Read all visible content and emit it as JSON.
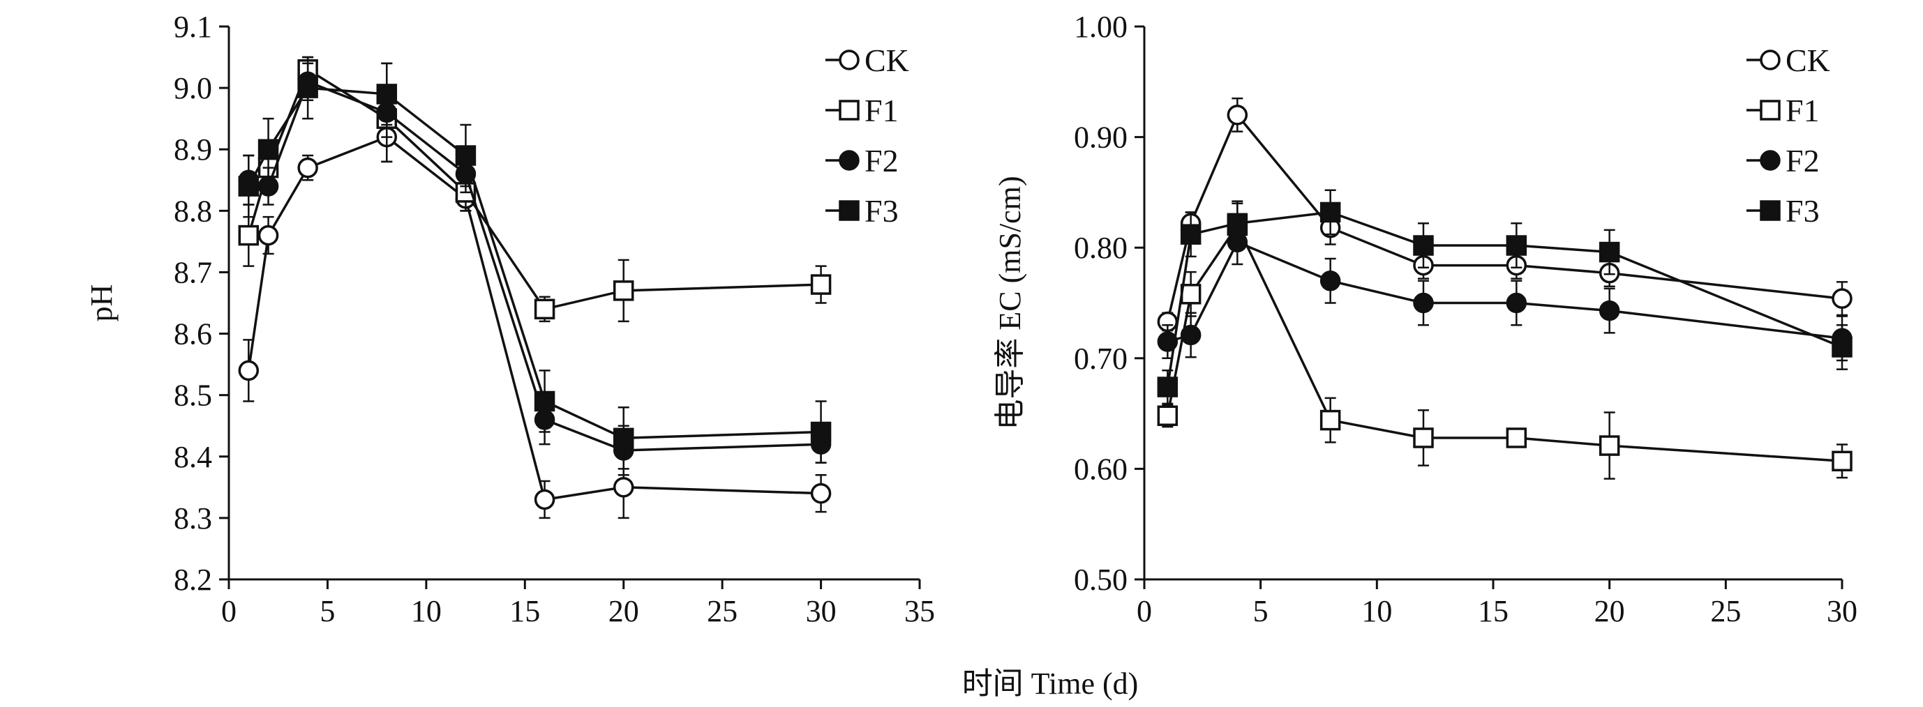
{
  "figure": {
    "xlabel": "时间 Time (d)"
  },
  "chart_data": [
    {
      "type": "line",
      "title": "",
      "xlabel": "",
      "ylabel": "pH",
      "xlim": [
        0,
        35
      ],
      "ylim": [
        8.2,
        9.1
      ],
      "xticks": [
        0,
        5,
        10,
        15,
        20,
        25,
        30,
        35
      ],
      "yticks": [
        8.2,
        8.3,
        8.4,
        8.5,
        8.6,
        8.7,
        8.8,
        8.9,
        9.0,
        9.1
      ],
      "ytick_labels": [
        "8.2",
        "8.3",
        "8.4",
        "8.5",
        "8.6",
        "8.7",
        "8.8",
        "8.9",
        "9.0",
        "9.1"
      ],
      "x": [
        1,
        2,
        4,
        8,
        12,
        16,
        20,
        30
      ],
      "legend_position": "top-right",
      "grid": false,
      "series": [
        {
          "name": "CK",
          "marker": "open-circle",
          "values": [
            8.54,
            8.76,
            8.87,
            8.92,
            8.82,
            8.33,
            8.35,
            8.34
          ],
          "errors": [
            0.05,
            0.03,
            0.02,
            0.04,
            0.02,
            0.03,
            0.05,
            0.03
          ]
        },
        {
          "name": "F1",
          "marker": "open-square",
          "values": [
            8.76,
            8.87,
            9.03,
            8.95,
            8.83,
            8.64,
            8.67,
            8.68
          ],
          "errors": [
            0.05,
            0.03,
            0.02,
            0.03,
            0.03,
            0.02,
            0.05,
            0.03
          ]
        },
        {
          "name": "F2",
          "marker": "filled-circle",
          "values": [
            8.85,
            8.84,
            9.01,
            8.96,
            8.86,
            8.46,
            8.41,
            8.42
          ],
          "errors": [
            0.04,
            0.03,
            0.03,
            0.08,
            0.03,
            0.04,
            0.04,
            0.03
          ]
        },
        {
          "name": "F3",
          "marker": "filled-square",
          "values": [
            8.84,
            8.9,
            9.0,
            8.99,
            8.89,
            8.49,
            8.43,
            8.44
          ],
          "errors": [
            0.05,
            0.05,
            0.05,
            0.05,
            0.05,
            0.05,
            0.05,
            0.05
          ]
        }
      ]
    },
    {
      "type": "line",
      "title": "",
      "xlabel": "",
      "ylabel": "电导率 EC (mS/cm)",
      "xlim": [
        0,
        30
      ],
      "ylim": [
        0.5,
        1.0
      ],
      "xticks": [
        0,
        5,
        10,
        15,
        20,
        25,
        30
      ],
      "yticks": [
        0.5,
        0.6,
        0.7,
        0.8,
        0.9,
        1.0
      ],
      "ytick_labels": [
        "0.50",
        "0.60",
        "0.70",
        "0.80",
        "0.90",
        "1.00"
      ],
      "x": [
        1,
        2,
        4,
        8,
        12,
        16,
        20,
        30
      ],
      "legend_position": "top-right",
      "grid": false,
      "series": [
        {
          "name": "CK",
          "marker": "open-circle",
          "values": [
            0.733,
            0.822,
            0.92,
            0.818,
            0.784,
            0.784,
            0.777,
            0.754
          ],
          "errors": [
            0.008,
            0.01,
            0.015,
            0.015,
            0.012,
            0.012,
            0.012,
            0.015
          ]
        },
        {
          "name": "F1",
          "marker": "open-square",
          "values": [
            0.648,
            0.758,
            0.82,
            0.644,
            0.628,
            0.628,
            0.621,
            0.607
          ],
          "errors": [
            0.01,
            0.02,
            0.02,
            0.02,
            0.025,
            0.008,
            0.03,
            0.015
          ]
        },
        {
          "name": "F2",
          "marker": "filled-circle",
          "values": [
            0.715,
            0.721,
            0.805,
            0.77,
            0.75,
            0.75,
            0.743,
            0.718
          ],
          "errors": [
            0.015,
            0.02,
            0.02,
            0.02,
            0.02,
            0.02,
            0.02,
            0.02
          ]
        },
        {
          "name": "F3",
          "marker": "filled-square",
          "values": [
            0.674,
            0.812,
            0.822,
            0.832,
            0.802,
            0.802,
            0.796,
            0.71
          ],
          "errors": [
            0.015,
            0.02,
            0.02,
            0.02,
            0.02,
            0.02,
            0.02,
            0.02
          ]
        }
      ]
    }
  ]
}
